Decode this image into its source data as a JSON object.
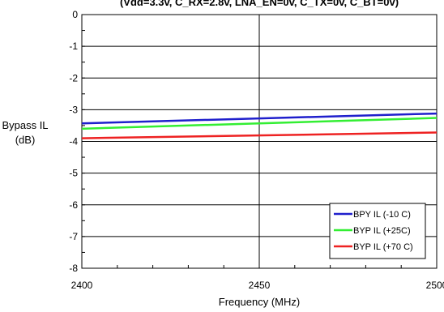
{
  "chart_data": {
    "type": "line",
    "title": "(Vdd=3.3v, C_RX=2.8v, LNA_EN=0v, C_TX=0v, C_BT=0v)",
    "xlabel": "Frequency (MHz)",
    "ylabel": [
      "Bypass IL",
      "(dB)"
    ],
    "xlim": [
      2400,
      2500
    ],
    "ylim": [
      -8,
      0
    ],
    "xticks": [
      "2400",
      "2450",
      "2500"
    ],
    "yticks": [
      "0",
      "-1",
      "-2",
      "-3",
      "-4",
      "-5",
      "-6",
      "-7",
      "-8"
    ],
    "grid": true,
    "legend_position": "bottom-right",
    "x": [
      2400,
      2500
    ],
    "series": [
      {
        "name": "BPY IL (-10 C)",
        "color": "#1f1fcc",
        "values": [
          -3.43,
          -3.12
        ]
      },
      {
        "name": "BYP IL (+25C)",
        "color": "#33ee33",
        "values": [
          -3.6,
          -3.26
        ]
      },
      {
        "name": "BYP IL (+70 C)",
        "color": "#ee2222",
        "values": [
          -3.9,
          -3.72
        ]
      }
    ]
  }
}
